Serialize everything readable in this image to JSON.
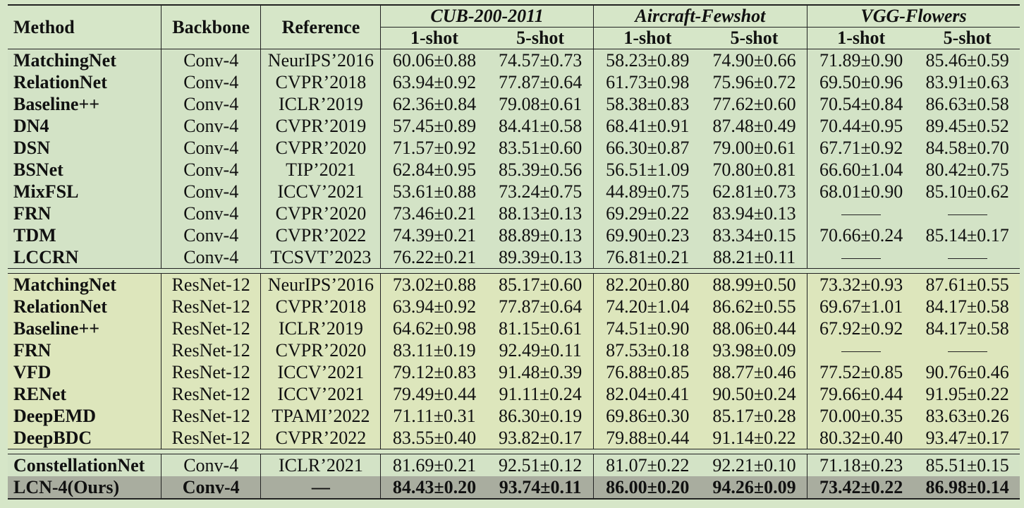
{
  "headers": {
    "method": "Method",
    "backbone": "Backbone",
    "reference": "Reference",
    "groups": [
      "CUB-200-2011",
      "Aircraft-Fewshot",
      "VGG-Flowers"
    ],
    "shots": [
      "1-shot",
      "5-shot",
      "1-shot",
      "5-shot",
      "1-shot",
      "5-shot"
    ]
  },
  "conv4_rows": [
    {
      "method": "MatchingNet",
      "backbone": "Conv-4",
      "reference": "NeurIPS’2016",
      "vals": [
        "60.06±0.88",
        "74.57±0.73",
        "58.23±0.89",
        "74.90±0.66",
        "71.89±0.90",
        "85.46±0.59"
      ]
    },
    {
      "method": "RelationNet",
      "backbone": "Conv-4",
      "reference": "CVPR’2018",
      "vals": [
        "63.94±0.92",
        "77.87±0.64",
        "61.73±0.98",
        "75.96±0.72",
        "69.50±0.96",
        "83.91±0.63"
      ]
    },
    {
      "method": "Baseline++",
      "backbone": "Conv-4",
      "reference": "ICLR’2019",
      "vals": [
        "62.36±0.84",
        "79.08±0.61",
        "58.38±0.83",
        "77.62±0.60",
        "70.54±0.84",
        "86.63±0.58"
      ]
    },
    {
      "method": "DN4",
      "backbone": "Conv-4",
      "reference": "CVPR’2019",
      "vals": [
        "57.45±0.89",
        "84.41±0.58",
        "68.41±0.91",
        "87.48±0.49",
        "70.44±0.95",
        "89.45±0.52"
      ]
    },
    {
      "method": "DSN",
      "backbone": "Conv-4",
      "reference": "CVPR’2020",
      "vals": [
        "71.57±0.92",
        "83.51±0.60",
        "66.30±0.87",
        "79.00±0.61",
        "67.71±0.92",
        "84.58±0.70"
      ]
    },
    {
      "method": "BSNet",
      "backbone": "Conv-4",
      "reference": "TIP’2021",
      "vals": [
        "62.84±0.95",
        "85.39±0.56",
        "56.51±1.09",
        "70.80±0.81",
        "66.60±1.04",
        "80.42±0.75"
      ]
    },
    {
      "method": "MixFSL",
      "backbone": "Conv-4",
      "reference": "ICCV’2021",
      "vals": [
        "53.61±0.88",
        "73.24±0.75",
        "44.89±0.75",
        "62.81±0.73",
        "68.01±0.90",
        "85.10±0.62"
      ]
    },
    {
      "method": "FRN",
      "backbone": "Conv-4",
      "reference": "CVPR’2020",
      "vals": [
        "73.46±0.21",
        "88.13±0.13",
        "69.29±0.22",
        "83.94±0.13",
        "",
        ""
      ]
    },
    {
      "method": "TDM",
      "backbone": "Conv-4",
      "reference": "CVPR’2022",
      "vals": [
        "74.39±0.21",
        "88.89±0.13",
        "69.90±0.23",
        "83.34±0.15",
        "70.66±0.24",
        "85.14±0.17"
      ]
    },
    {
      "method": "LCCRN",
      "backbone": "Conv-4",
      "reference": "TCSVT’2023",
      "vals": [
        "76.22±0.21",
        "89.39±0.13",
        "76.81±0.21",
        "88.21±0.11",
        "",
        ""
      ]
    }
  ],
  "resnet_rows": [
    {
      "method": "MatchingNet",
      "backbone": "ResNet-12",
      "reference": "NeurIPS’2016",
      "vals": [
        "73.02±0.88",
        "85.17±0.60",
        "82.20±0.80",
        "88.99±0.50",
        "73.32±0.93",
        "87.61±0.55"
      ]
    },
    {
      "method": "RelationNet",
      "backbone": "ResNet-12",
      "reference": "CVPR’2018",
      "vals": [
        "63.94±0.92",
        "77.87±0.64",
        "74.20±1.04",
        "86.62±0.55",
        "69.67±1.01",
        "84.17±0.58"
      ]
    },
    {
      "method": "Baseline++",
      "backbone": "ResNet-12",
      "reference": "ICLR’2019",
      "vals": [
        "64.62±0.98",
        "81.15±0.61",
        "74.51±0.90",
        "88.06±0.44",
        "67.92±0.92",
        "84.17±0.58"
      ]
    },
    {
      "method": "FRN",
      "backbone": "ResNet-12",
      "reference": "CVPR’2020",
      "vals": [
        "83.11±0.19",
        "92.49±0.11",
        "87.53±0.18",
        "93.98±0.09",
        "",
        ""
      ]
    },
    {
      "method": "VFD",
      "backbone": "ResNet-12",
      "reference": "ICCV’2021",
      "vals": [
        "79.12±0.83",
        "91.48±0.39",
        "76.88±0.85",
        "88.77±0.46",
        "77.52±0.85",
        "90.76±0.46"
      ]
    },
    {
      "method": "RENet",
      "backbone": "ResNet-12",
      "reference": "ICCV’2021",
      "vals": [
        "79.49±0.44",
        "91.11±0.24",
        "82.04±0.41",
        "90.50±0.24",
        "79.66±0.44",
        "91.95±0.22"
      ]
    },
    {
      "method": "DeepEMD",
      "backbone": "ResNet-12",
      "reference": "TPAMI’2022",
      "vals": [
        "71.11±0.31",
        "86.30±0.19",
        "69.86±0.30",
        "85.17±0.28",
        "70.00±0.35",
        "83.63±0.26"
      ]
    },
    {
      "method": "DeepBDC",
      "backbone": "ResNet-12",
      "reference": "CVPR’2022",
      "vals": [
        "83.55±0.40",
        "93.82±0.17",
        "79.88±0.44",
        "91.14±0.22",
        "80.32±0.40",
        "93.47±0.17"
      ]
    }
  ],
  "final_rows": [
    {
      "method": "ConstellationNet",
      "backbone": "Conv-4",
      "reference": "ICLR’2021",
      "vals": [
        "81.69±0.21",
        "92.51±0.12",
        "81.07±0.22",
        "92.21±0.10",
        "71.18±0.23",
        "85.51±0.15"
      ],
      "ours": false
    },
    {
      "method": "LCN-4(Ours)",
      "backbone": "Conv-4",
      "reference": "—",
      "vals": [
        "84.43±0.20",
        "93.74±0.11",
        "86.00±0.20",
        "94.26±0.09",
        "73.42±0.22",
        "86.98±0.14"
      ],
      "ours": true
    }
  ]
}
